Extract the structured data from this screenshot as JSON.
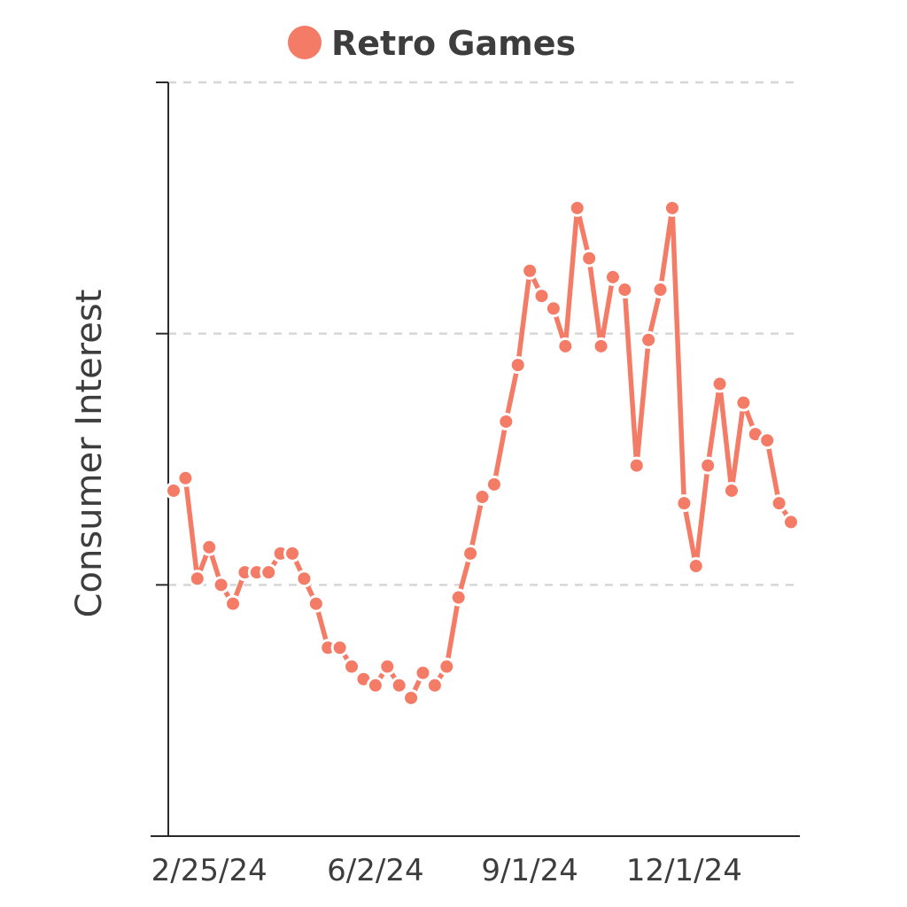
{
  "colors": {
    "series": "#f47c66",
    "text": "#3d3d3d",
    "grid": "#d6d6d6",
    "axis": "#2a2a2a"
  },
  "chart_data": {
    "type": "line",
    "title": "",
    "xlabel": "",
    "ylabel": "Consumer Interest",
    "ylim": [
      0,
      120
    ],
    "y_ticks": [
      40,
      80,
      120
    ],
    "y_tick_labels_shown": false,
    "grid": "horizontal dashed",
    "legend": "top-center",
    "x_tick_labels": [
      "2/25/24",
      "6/2/24",
      "9/1/24",
      "12/1/24"
    ],
    "x_tick_indices": [
      3,
      17,
      30,
      43
    ],
    "series": [
      {
        "name": "Retro Games",
        "color": "#f47c66",
        "values": [
          55,
          57,
          41,
          46,
          40,
          37,
          42,
          42,
          42,
          45,
          45,
          41,
          37,
          30,
          30,
          27,
          25,
          24,
          27,
          24,
          22,
          26,
          24,
          27,
          38,
          45,
          54,
          56,
          66,
          75,
          90,
          86,
          84,
          78,
          100,
          92,
          78,
          89,
          87,
          59,
          79,
          87,
          100,
          53,
          43,
          59,
          72,
          55,
          69,
          64,
          63,
          53,
          50
        ]
      }
    ]
  }
}
